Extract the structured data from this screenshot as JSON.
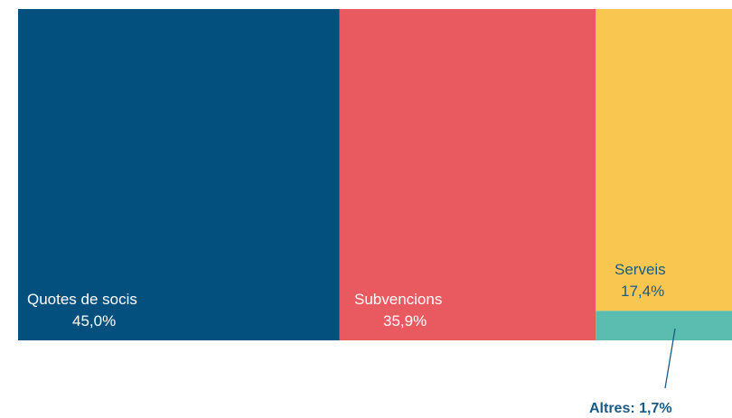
{
  "chart_data": {
    "type": "treemap",
    "unit": "%",
    "segments": [
      {
        "name": "Quotes de socis",
        "value": 45.0,
        "value_label": "45,0%",
        "color": "#03507f"
      },
      {
        "name": "Subvencions",
        "value": 35.9,
        "value_label": "35,9%",
        "color": "#e85a60"
      },
      {
        "name": "Serveis",
        "value": 17.4,
        "value_label": "17,4%",
        "color": "#f9c74f"
      },
      {
        "name": "Altres",
        "value": 1.7,
        "value_label": "Altres: 1,7%",
        "color": "#5bbcb0"
      }
    ],
    "leader_line_color": "#1a5a86"
  }
}
